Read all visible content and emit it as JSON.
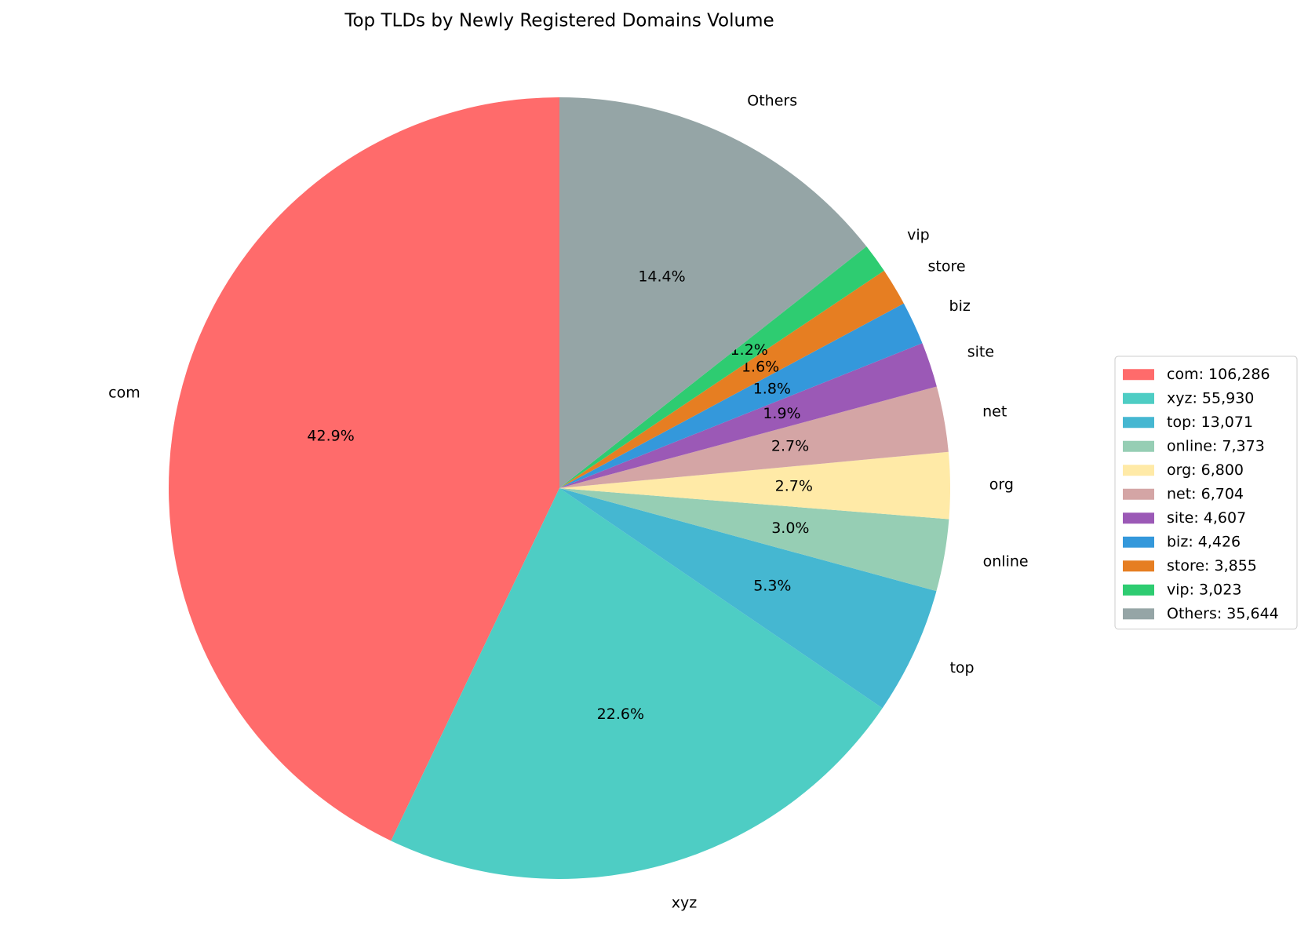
{
  "chart_data": {
    "type": "pie",
    "title": "Top TLDs by Newly Registered Domains Volume",
    "categories": [
      "com",
      "xyz",
      "top",
      "online",
      "org",
      "net",
      "site",
      "biz",
      "store",
      "vip",
      "Others"
    ],
    "values": [
      106286,
      55930,
      13071,
      7373,
      6800,
      6704,
      4607,
      4426,
      3855,
      3023,
      35644
    ],
    "value_labels": [
      "com: 106,286",
      "xyz: 55,930",
      "top: 13,071",
      "online: 7,373",
      "org: 6,800",
      "net: 6,704",
      "site: 4,607",
      "biz: 4,426",
      "store: 3,855",
      "vip: 3,023",
      "Others: 35,644"
    ],
    "percents": [
      42.9,
      22.6,
      5.3,
      3.0,
      2.7,
      2.7,
      1.9,
      1.8,
      1.6,
      1.2,
      14.4
    ],
    "percent_labels": [
      "42.9%",
      "22.6%",
      "5.3%",
      "3.0%",
      "2.7%",
      "2.7%",
      "1.9%",
      "1.8%",
      "1.6%",
      "1.2%",
      "14.4%"
    ],
    "colors": [
      "#ff6b6b",
      "#4ecdc4",
      "#45b7d1",
      "#96ceb4",
      "#ffeaa7",
      "#d4a5a5",
      "#9b59b6",
      "#3498db",
      "#e67e22",
      "#2ecc71",
      "#95a5a6"
    ],
    "legend": "right"
  }
}
